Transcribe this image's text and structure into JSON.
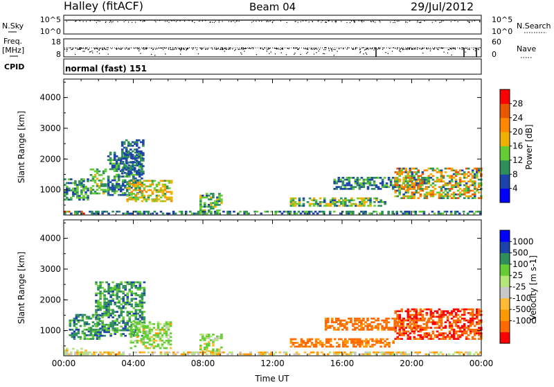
{
  "header": {
    "station": "Halley (fitACF)",
    "beam": "Beam 04",
    "date": "29/Jul/2012"
  },
  "panels": {
    "nsky_label": "N.Sky",
    "nsky_ticks": [
      "10^5",
      "10^0"
    ],
    "nsearch_label": "N.Search",
    "nsearch_ticks": [
      "10^5",
      "10^0"
    ],
    "freq_label_1": "Freq.",
    "freq_label_2": "[MHz]",
    "freq_ticks": [
      "18",
      "8"
    ],
    "nave_label": "Nave",
    "nave_ticks": [
      "60",
      "0"
    ],
    "cpid_label": "CPID",
    "cpid_value": "normal (fast) 151"
  },
  "colors": {
    "power": [
      "#0000ff",
      "#1c44a8",
      "#2f8f5a",
      "#66cc33",
      "#f0b000",
      "#ff8800",
      "#e85800",
      "#ff0000"
    ],
    "velocity": [
      "#ff0000",
      "#ff6a00",
      "#ff9900",
      "#ffbb33",
      "#c8c8c8",
      "#b4e67a",
      "#66cc33",
      "#2f8f5a",
      "#1c44a8",
      "#0000ff"
    ]
  },
  "chart_data": [
    {
      "type": "heatmap",
      "name": "power",
      "xlabel": "",
      "ylabel": "Slant Range [km]",
      "xlim": [
        0,
        24
      ],
      "ylim": [
        180,
        4600
      ],
      "yticks": [
        "1000",
        "2000",
        "3000",
        "4000"
      ],
      "colorbar_label": "Power [dB]",
      "colorbar_ticks": [
        "4",
        "8",
        "12",
        "16",
        "20",
        "24",
        "28"
      ],
      "colorbar_range": [
        0,
        32
      ],
      "blobs": [
        {
          "t0": 0.0,
          "t1": 1.2,
          "r0": 200,
          "r1": 320,
          "v0": 24,
          "v1": 30
        },
        {
          "t0": 0.0,
          "t1": 1.4,
          "r0": 650,
          "r1": 1350,
          "v0": 6,
          "v1": 16
        },
        {
          "t0": 1.5,
          "t1": 2.4,
          "r0": 850,
          "r1": 1650,
          "v0": 8,
          "v1": 18
        },
        {
          "t0": 2.5,
          "t1": 4.5,
          "r0": 800,
          "r1": 2200,
          "v0": 4,
          "v1": 14
        },
        {
          "t0": 3.3,
          "t1": 4.6,
          "r0": 1500,
          "r1": 2600,
          "v0": 4,
          "v1": 10
        },
        {
          "t0": 3.6,
          "t1": 6.2,
          "r0": 600,
          "r1": 1300,
          "v0": 10,
          "v1": 22
        },
        {
          "t0": 7.8,
          "t1": 9.0,
          "r0": 300,
          "r1": 900,
          "v0": 6,
          "v1": 18
        },
        {
          "t0": 0.0,
          "t1": 24.0,
          "r0": 200,
          "r1": 290,
          "v0": 4,
          "v1": 14
        },
        {
          "t0": 13.0,
          "t1": 18.5,
          "r0": 450,
          "r1": 700,
          "v0": 6,
          "v1": 20
        },
        {
          "t0": 15.5,
          "t1": 21.0,
          "r0": 1000,
          "r1": 1400,
          "v0": 4,
          "v1": 14
        },
        {
          "t0": 19.0,
          "t1": 24.0,
          "r0": 700,
          "r1": 1700,
          "v0": 6,
          "v1": 28
        }
      ]
    },
    {
      "type": "heatmap",
      "name": "velocity",
      "xlabel": "Time UT",
      "ylabel": "Slant Range [km]",
      "xlim": [
        0,
        24
      ],
      "ylim": [
        180,
        4600
      ],
      "xticks": [
        "00:00",
        "04:00",
        "08:00",
        "12:00",
        "16:00",
        "20:00",
        "00:00"
      ],
      "yticks": [
        "1000",
        "2000",
        "3000",
        "4000"
      ],
      "colorbar_label": "Velocity [m s-1]",
      "colorbar_ticks": [
        "1000",
        "500",
        "100",
        "25",
        "-25",
        "-100",
        "-500",
        "-1000"
      ],
      "colorbar_range": [
        -1500,
        1500
      ],
      "blobs": [
        {
          "t0": 0.0,
          "t1": 1.3,
          "r0": 200,
          "r1": 400,
          "v0": -80,
          "v1": 80
        },
        {
          "t0": 0.3,
          "t1": 2.0,
          "r0": 700,
          "r1": 1500,
          "v0": 200,
          "v1": 1200
        },
        {
          "t0": 1.8,
          "t1": 4.6,
          "r0": 800,
          "r1": 2600,
          "v0": 150,
          "v1": 1200
        },
        {
          "t0": 3.8,
          "t1": 6.2,
          "r0": 400,
          "r1": 1300,
          "v0": -50,
          "v1": 400
        },
        {
          "t0": 7.8,
          "t1": 9.0,
          "r0": 300,
          "r1": 900,
          "v0": -30,
          "v1": 200
        },
        {
          "t0": 0.0,
          "t1": 24.0,
          "r0": 200,
          "r1": 280,
          "v0": -60,
          "v1": 60
        },
        {
          "t0": 13.0,
          "t1": 19.0,
          "r0": 450,
          "r1": 750,
          "v0": -300,
          "v1": -20
        },
        {
          "t0": 15.0,
          "t1": 21.0,
          "r0": 1000,
          "r1": 1400,
          "v0": -500,
          "v1": -50
        },
        {
          "t0": 19.0,
          "t1": 24.0,
          "r0": 700,
          "r1": 1700,
          "v0": -900,
          "v1": -80
        }
      ]
    }
  ]
}
